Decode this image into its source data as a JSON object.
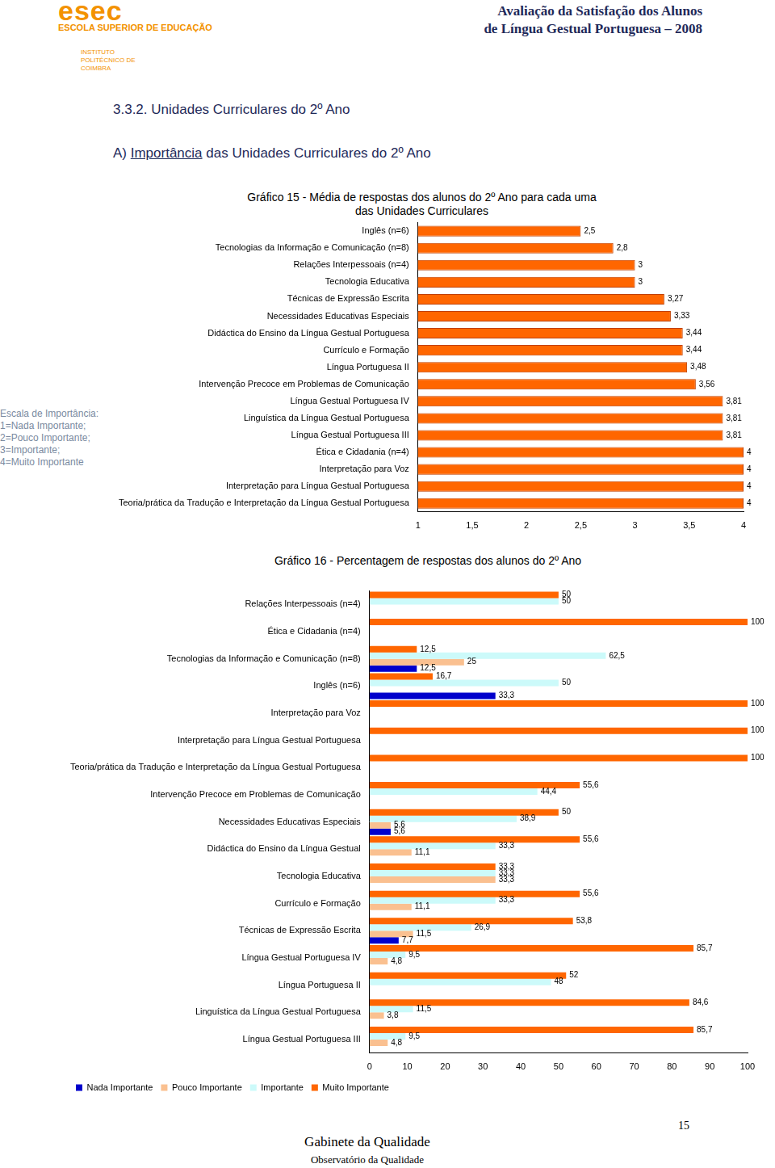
{
  "header": {
    "logo": "esec",
    "school": "ESCOLA SUPERIOR DE EDUCAÇÃO",
    "institute": "INSTITUTO POLITÉCNICO DE COIMBRA",
    "title_line1": "Avaliação da Satisfação dos Alunos",
    "title_line2": "de Língua Gestual Portuguesa – 2008"
  },
  "section": {
    "heading": "3.3.2. Unidades Curriculares do 2º Ano",
    "subheading_prefix": "A) ",
    "subheading_underlined": "Importância",
    "subheading_rest": " das Unidades Curriculares do 2º Ano"
  },
  "scale_note": [
    "Escala de Importância:",
    "1=Nada Importante;",
    "2=Pouco Importante;",
    "3=Importante;",
    "4=Muito Importante"
  ],
  "footer": {
    "page": 15,
    "office": "Gabinete da Qualidade",
    "observatory": "Observatório da Qualidade"
  },
  "chart_data": [
    {
      "type": "bar",
      "orientation": "horizontal",
      "title": "Gráfico 15 - Média de respostas dos alunos do 2º Ano para cada uma das Unidades Curriculares",
      "categories": [
        "Inglês (n=6)",
        "Tecnologias da Informação e Comunicação (n=8)",
        "Relações Interpessoais (n=4)",
        "Tecnologia Educativa",
        "Técnicas de Expressão Escrita",
        "Necessidades Educativas Especiais",
        "Didáctica do Ensino da Língua Gestual Portuguesa",
        "Currículo e Formação",
        "Língua Portuguesa II",
        "Intervenção Precoce em Problemas de Comunicação",
        "Língua Gestual Portuguesa IV",
        "Linguística da Língua Gestual Portuguesa",
        "Língua Gestual Portuguesa III",
        "Ética e Cidadania (n=4)",
        "Interpretação para Voz",
        "Interpretação para Língua Gestual Portuguesa",
        "Teoria/prática da Tradução e Interpretação da Língua Gestual Portuguesa"
      ],
      "values": [
        2.5,
        2.8,
        3,
        3,
        3.27,
        3.33,
        3.44,
        3.44,
        3.48,
        3.56,
        3.81,
        3.81,
        3.81,
        4,
        4,
        4,
        4
      ],
      "value_labels": [
        "2,5",
        "2,8",
        "3",
        "3",
        "3,27",
        "3,33",
        "3,44",
        "3,44",
        "3,48",
        "3,56",
        "3,81",
        "3,81",
        "3,81",
        "4",
        "4",
        "4",
        "4"
      ],
      "color": "#ff6600",
      "xlim": [
        1,
        4
      ],
      "xticks": [
        1,
        {
          "value": 1.5,
          "label": "1,5"
        },
        2,
        {
          "value": 2.5,
          "label": "2,5"
        },
        3,
        {
          "value": 3.5,
          "label": "3,5"
        },
        4
      ],
      "grid": false,
      "data_labels": true
    },
    {
      "type": "bar",
      "orientation": "horizontal",
      "title": "Gráfico 16 - Percentagem de respostas dos alunos do 2º Ano",
      "categories": [
        "Relações Interpessoais (n=4)",
        "Ética e Cidadania (n=4)",
        "Tecnologias da Informação e Comunicação (n=8)",
        "Inglês (n=6)",
        "Interpretação para Voz",
        "Interpretação para Língua Gestual Portuguesa",
        "Teoria/prática da Tradução e Interpretação da Língua Gestual Portuguesa",
        "Intervenção Precoce em Problemas de Comunicação",
        "Necessidades Educativas Especiais",
        "Didáctica do Ensino da Língua Gestual",
        "Tecnologia Educativa",
        "Currículo e Formação",
        "Técnicas de Expressão Escrita",
        "Língua Gestual Portuguesa IV",
        "Língua Portuguesa II",
        "Linguística da Língua Gestual Portuguesa",
        "Língua Gestual Portuguesa III"
      ],
      "series": [
        {
          "name": "Nada Importante",
          "color": "#0000cc",
          "values": [
            null,
            null,
            12.5,
            33.3,
            null,
            null,
            null,
            null,
            5.6,
            null,
            null,
            null,
            7.7,
            null,
            null,
            null,
            null
          ],
          "value_labels": [
            null,
            null,
            "12,5",
            "33,3",
            null,
            null,
            null,
            null,
            "5,6",
            null,
            null,
            null,
            "7,7",
            null,
            null,
            null,
            null
          ]
        },
        {
          "name": "Pouco Importante",
          "color": "#fac090",
          "values": [
            null,
            null,
            25,
            null,
            null,
            null,
            null,
            null,
            5.6,
            11.1,
            33.3,
            11.1,
            11.5,
            4.8,
            null,
            3.8,
            4.8
          ],
          "value_labels": [
            null,
            null,
            "25",
            null,
            null,
            null,
            null,
            null,
            "5,6",
            "11,1",
            "33,3",
            "11,1",
            "11,5",
            "4,8",
            null,
            "3,8",
            "4,8"
          ]
        },
        {
          "name": "Importante",
          "color": "#ccfafa",
          "values": [
            50,
            null,
            62.5,
            50,
            null,
            null,
            null,
            44.4,
            38.9,
            33.3,
            33.3,
            33.3,
            26.9,
            9.5,
            48,
            11.5,
            9.5
          ],
          "value_labels": [
            "50",
            null,
            "62,5",
            "50",
            null,
            null,
            null,
            "44,4",
            "38,9",
            "33,3",
            "33,3",
            "33,3",
            "26,9",
            "9,5",
            "48",
            "11,5",
            "9,5"
          ]
        },
        {
          "name": "Muito Importante",
          "color": "#ff6600",
          "values": [
            50,
            100,
            12.5,
            16.7,
            100,
            100,
            100,
            55.6,
            50,
            55.6,
            33.3,
            55.6,
            53.8,
            85.7,
            52,
            84.6,
            85.7
          ],
          "value_labels": [
            "50",
            "100",
            "12,5",
            "16,7",
            "100",
            "100",
            "100",
            "55,6",
            "50",
            "55,6",
            "33,3",
            "55,6",
            "53,8",
            "85,7",
            "52",
            "84,6",
            "85,7"
          ]
        }
      ],
      "xlim": [
        0,
        100
      ],
      "xticks": [
        0,
        10,
        20,
        30,
        40,
        50,
        60,
        70,
        80,
        90,
        100
      ],
      "grid": false,
      "data_labels": true,
      "legend": "bottom-left"
    }
  ]
}
